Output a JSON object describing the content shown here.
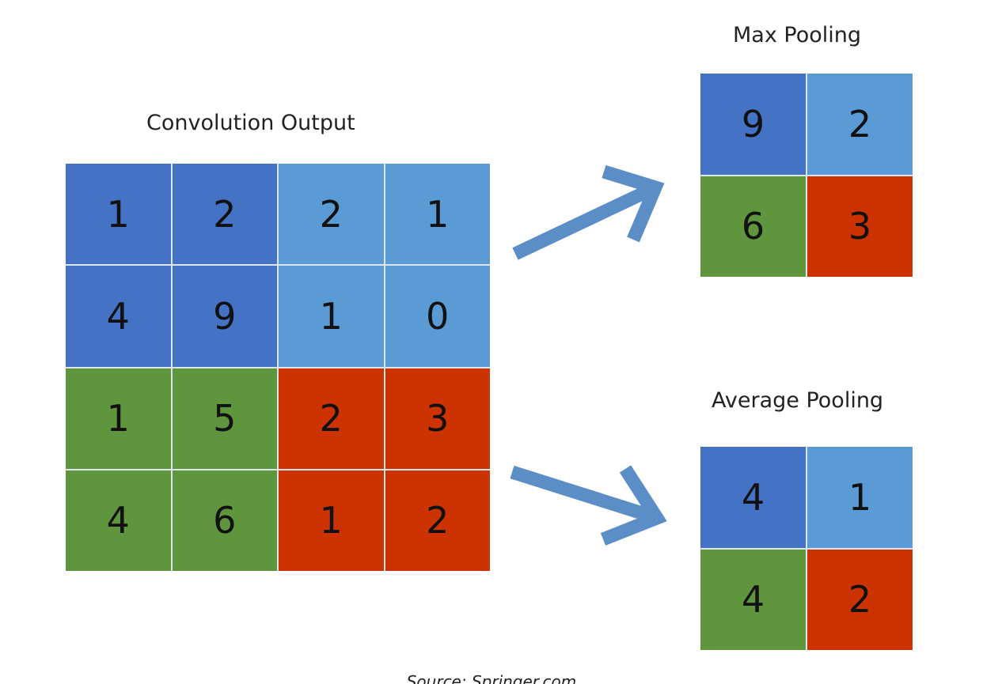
{
  "colors": {
    "dark_blue": "#4472c4",
    "light_blue": "#5b9bd5",
    "green": "#5f953c",
    "red": "#cc3300",
    "arrow": "#5b8ec6"
  },
  "convolution": {
    "title": "Convolution Output",
    "rows": [
      [
        "1",
        "2",
        "2",
        "1"
      ],
      [
        "4",
        "9",
        "1",
        "0"
      ],
      [
        "1",
        "5",
        "2",
        "3"
      ],
      [
        "4",
        "6",
        "1",
        "2"
      ]
    ]
  },
  "max_pooling": {
    "title": "Max Pooling",
    "rows": [
      [
        "9",
        "2"
      ],
      [
        "6",
        "3"
      ]
    ]
  },
  "average_pooling": {
    "title": "Average Pooling",
    "rows": [
      [
        "4",
        "1"
      ],
      [
        "4",
        "2"
      ]
    ]
  },
  "arrows": [
    {
      "from": "convolution",
      "to": "max_pooling"
    },
    {
      "from": "convolution",
      "to": "average_pooling"
    }
  ],
  "source": "Source: Springer.com"
}
